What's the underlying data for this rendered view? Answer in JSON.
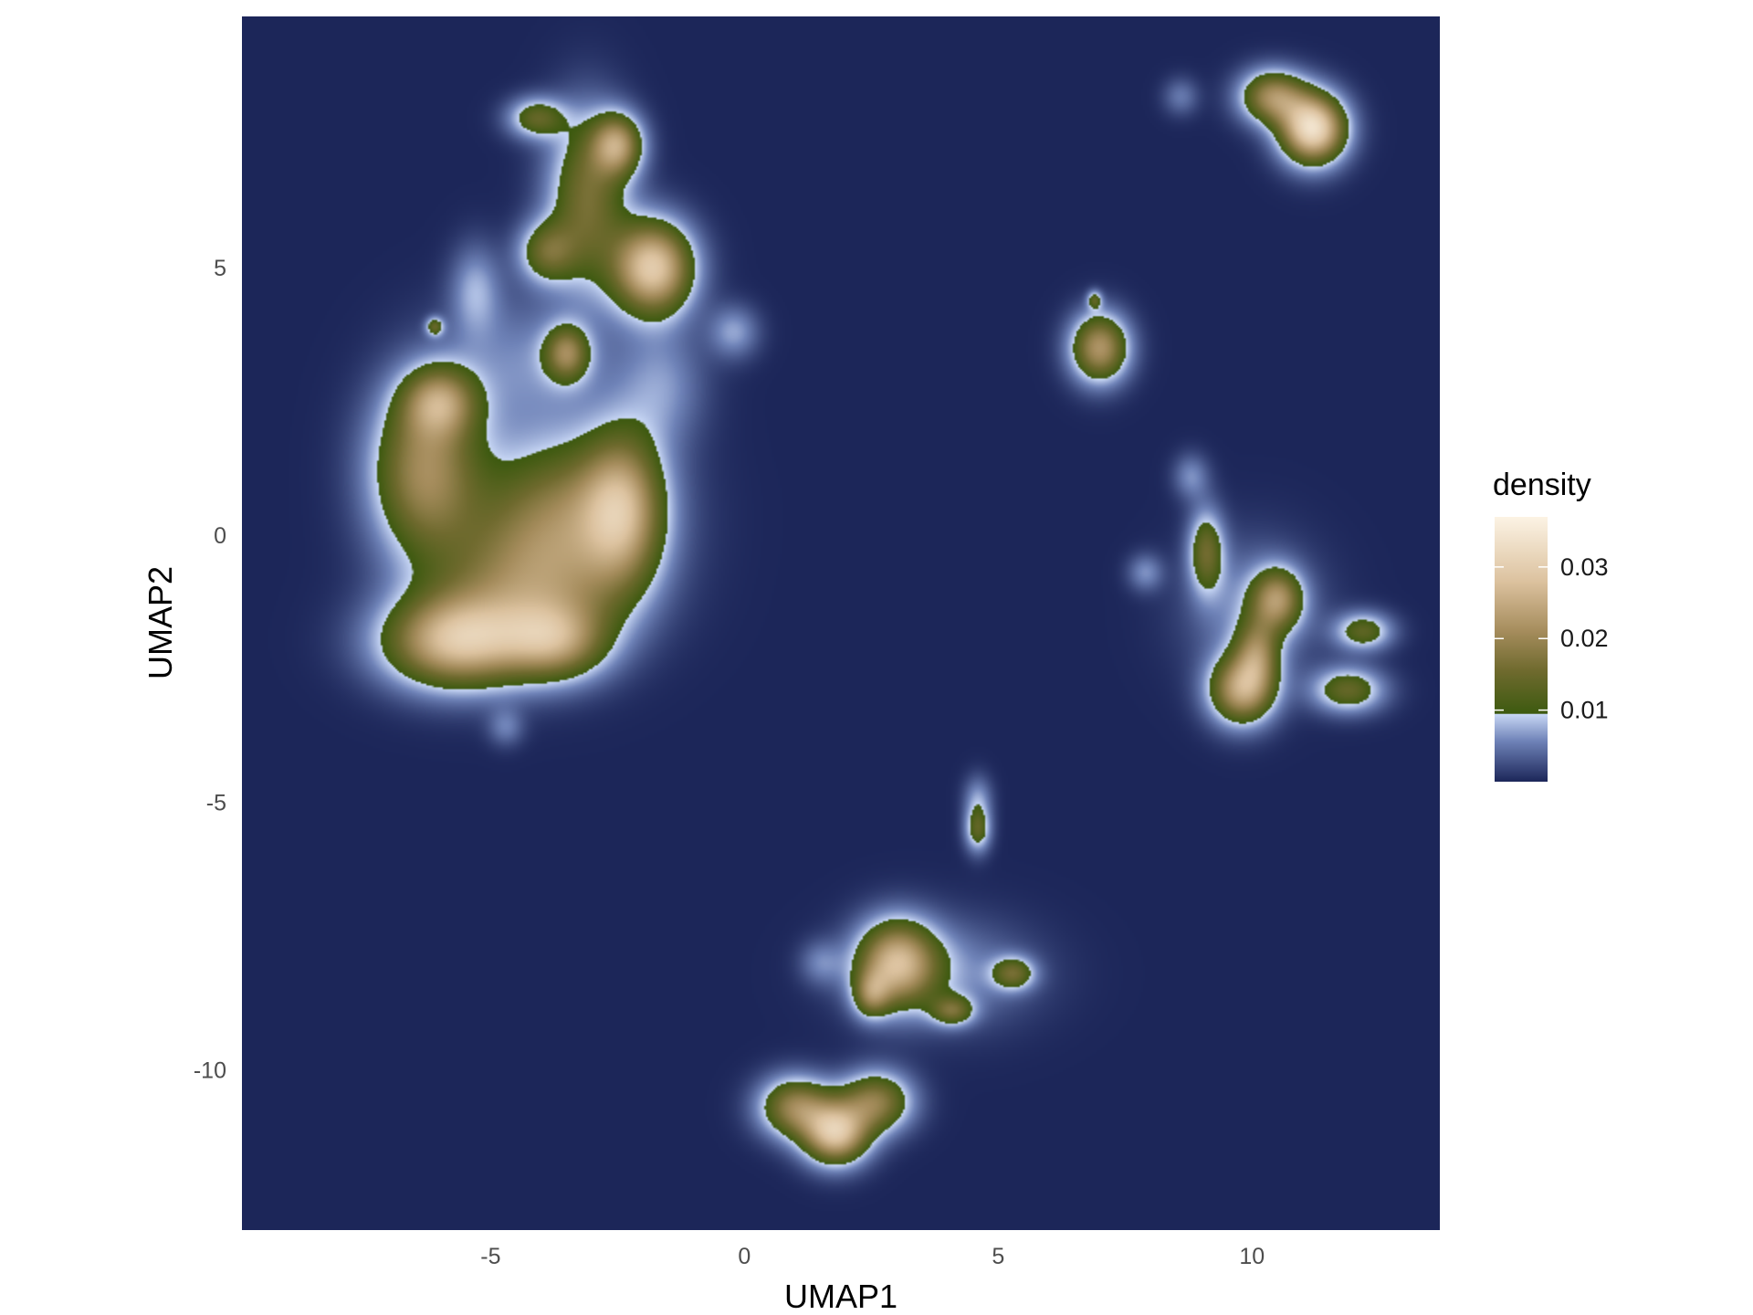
{
  "chart_data": {
    "type": "heatmap",
    "subtype": "2d-density",
    "xlabel": "UMAP1",
    "ylabel": "UMAP2",
    "xlim": [
      -9.9,
      13.7
    ],
    "ylim": [
      -13.0,
      9.7
    ],
    "x_ticks": [
      -5,
      0,
      5,
      10
    ],
    "x_tick_labels": [
      "-5",
      "0",
      "5",
      "10"
    ],
    "y_ticks": [
      -10,
      -5,
      0,
      5
    ],
    "y_tick_labels": [
      "-10",
      "-5",
      "0",
      "5"
    ],
    "grid": false,
    "legend": {
      "title": "density",
      "placement": "right",
      "range": [
        0,
        0.037
      ],
      "ticks": [
        0.01,
        0.02,
        0.03
      ],
      "tick_labels": [
        "0.01",
        "0.02",
        "0.03"
      ]
    },
    "colors": {
      "background": "#1c2659",
      "low": "#c8d7f5",
      "threshold": "#3d5a10",
      "mid": "#a58c5c",
      "high": "#fcf3e4"
    },
    "clusters": [
      {
        "name": "left-main-arm",
        "x": -6.3,
        "y": 1.2,
        "sx": 0.75,
        "sy": 1.1,
        "peak": 0.02
      },
      {
        "name": "left-main-top",
        "x": -6.0,
        "y": 2.5,
        "sx": 0.5,
        "sy": 0.45,
        "peak": 0.016
      },
      {
        "name": "left-main-center",
        "x": -3.5,
        "y": 0.5,
        "sx": 1.2,
        "sy": 0.95,
        "peak": 0.016
      },
      {
        "name": "left-main-right",
        "x": -2.4,
        "y": 0.5,
        "sx": 0.55,
        "sy": 1.0,
        "peak": 0.018
      },
      {
        "name": "left-main-lowcenter",
        "x": -4.2,
        "y": -1.0,
        "sx": 1.3,
        "sy": 0.9,
        "peak": 0.017
      },
      {
        "name": "left-main-bottom",
        "x": -5.7,
        "y": -2.0,
        "sx": 1.0,
        "sy": 0.6,
        "peak": 0.025
      },
      {
        "name": "left-main-bottom-right",
        "x": -3.7,
        "y": -2.0,
        "sx": 0.7,
        "sy": 0.5,
        "peak": 0.016
      },
      {
        "name": "upper-left-elongated",
        "x": -3.1,
        "y": 6.3,
        "sx": 0.55,
        "sy": 1.1,
        "peak": 0.016
      },
      {
        "name": "upper-left-tip",
        "x": -2.5,
        "y": 7.3,
        "sx": 0.35,
        "sy": 0.4,
        "peak": 0.02
      },
      {
        "name": "upper-left-lower",
        "x": -3.9,
        "y": 5.3,
        "sx": 0.4,
        "sy": 0.4,
        "peak": 0.013
      },
      {
        "name": "upper-left-right-blob",
        "x": -1.8,
        "y": 5.0,
        "sx": 0.55,
        "sy": 0.6,
        "peak": 0.029
      },
      {
        "name": "upper-left-small-top",
        "x": -4.1,
        "y": 7.8,
        "sx": 0.4,
        "sy": 0.27,
        "peak": 0.013
      },
      {
        "name": "upper-left-small-mid",
        "x": -3.5,
        "y": 3.4,
        "sx": 0.3,
        "sy": 0.35,
        "peak": 0.016
      },
      {
        "name": "upper-left-dot",
        "x": -6.1,
        "y": 3.9,
        "sx": 0.12,
        "sy": 0.12,
        "peak": 0.012
      },
      {
        "name": "haze-1",
        "x": -5.3,
        "y": 4.6,
        "sx": 0.35,
        "sy": 0.6,
        "peak": 0.007
      },
      {
        "name": "haze-2",
        "x": -4.2,
        "y": 3.2,
        "sx": 1.2,
        "sy": 0.9,
        "peak": 0.006
      },
      {
        "name": "haze-3",
        "x": -1.6,
        "y": 2.8,
        "sx": 0.6,
        "sy": 0.8,
        "peak": 0.006
      },
      {
        "name": "haze-4",
        "x": -0.2,
        "y": 3.8,
        "sx": 0.35,
        "sy": 0.35,
        "peak": 0.007
      },
      {
        "name": "haze-5",
        "x": -4.7,
        "y": -3.6,
        "sx": 0.25,
        "sy": 0.25,
        "peak": 0.005
      },
      {
        "name": "top-right-left",
        "x": 10.4,
        "y": 8.2,
        "sx": 0.45,
        "sy": 0.35,
        "peak": 0.02
      },
      {
        "name": "top-right-right",
        "x": 11.2,
        "y": 7.6,
        "sx": 0.45,
        "sy": 0.45,
        "peak": 0.033
      },
      {
        "name": "top-right-haze",
        "x": 8.6,
        "y": 8.2,
        "sx": 0.25,
        "sy": 0.25,
        "peak": 0.005
      },
      {
        "name": "mid-right",
        "x": 7.0,
        "y": 3.5,
        "sx": 0.4,
        "sy": 0.45,
        "peak": 0.022
      },
      {
        "name": "mid-right-dot",
        "x": 6.9,
        "y": 4.4,
        "sx": 0.1,
        "sy": 0.12,
        "peak": 0.011
      },
      {
        "name": "right-a",
        "x": 9.1,
        "y": -0.3,
        "sx": 0.25,
        "sy": 0.55,
        "peak": 0.014
      },
      {
        "name": "right-haze-1",
        "x": 8.8,
        "y": 1.1,
        "sx": 0.25,
        "sy": 0.3,
        "peak": 0.006
      },
      {
        "name": "right-haze-2",
        "x": 7.9,
        "y": -0.7,
        "sx": 0.25,
        "sy": 0.25,
        "peak": 0.006
      },
      {
        "name": "right-haze-3",
        "x": 10.0,
        "y": -1.4,
        "sx": 0.9,
        "sy": 0.9,
        "peak": 0.006
      },
      {
        "name": "right-b",
        "x": 10.5,
        "y": -1.2,
        "sx": 0.35,
        "sy": 0.4,
        "peak": 0.018
      },
      {
        "name": "right-c",
        "x": 10.1,
        "y": -2.2,
        "sx": 0.3,
        "sy": 0.45,
        "peak": 0.014
      },
      {
        "name": "right-d",
        "x": 9.8,
        "y": -2.9,
        "sx": 0.45,
        "sy": 0.45,
        "peak": 0.023
      },
      {
        "name": "right-e",
        "x": 12.2,
        "y": -1.8,
        "sx": 0.4,
        "sy": 0.25,
        "peak": 0.013
      },
      {
        "name": "right-f",
        "x": 11.9,
        "y": -2.9,
        "sx": 0.5,
        "sy": 0.3,
        "peak": 0.014
      },
      {
        "name": "bottom-dot",
        "x": 4.6,
        "y": -5.5,
        "sx": 0.18,
        "sy": 0.3,
        "peak": 0.013
      },
      {
        "name": "bottom-haze-top",
        "x": 4.6,
        "y": -4.9,
        "sx": 0.2,
        "sy": 0.3,
        "peak": 0.006
      },
      {
        "name": "bottom-star",
        "x": 3.0,
        "y": -8.0,
        "sx": 0.55,
        "sy": 0.55,
        "peak": 0.024
      },
      {
        "name": "bottom-star-lower",
        "x": 2.5,
        "y": -8.6,
        "sx": 0.25,
        "sy": 0.3,
        "peak": 0.013
      },
      {
        "name": "bottom-small-1",
        "x": 4.1,
        "y": -8.9,
        "sx": 0.3,
        "sy": 0.2,
        "peak": 0.013
      },
      {
        "name": "bottom-small-2",
        "x": 5.3,
        "y": -8.2,
        "sx": 0.3,
        "sy": 0.22,
        "peak": 0.013
      },
      {
        "name": "bottom-haze",
        "x": 4.0,
        "y": -8.2,
        "sx": 1.2,
        "sy": 0.7,
        "peak": 0.006
      },
      {
        "name": "bottom-haze-left",
        "x": 1.5,
        "y": -8.0,
        "sx": 0.3,
        "sy": 0.3,
        "peak": 0.005
      },
      {
        "name": "bottom-blob-left",
        "x": 1.0,
        "y": -10.7,
        "sx": 0.5,
        "sy": 0.4,
        "peak": 0.019
      },
      {
        "name": "bottom-blob-center",
        "x": 1.8,
        "y": -11.2,
        "sx": 0.45,
        "sy": 0.4,
        "peak": 0.027
      },
      {
        "name": "bottom-blob-right",
        "x": 2.6,
        "y": -10.6,
        "sx": 0.5,
        "sy": 0.4,
        "peak": 0.018
      }
    ]
  }
}
